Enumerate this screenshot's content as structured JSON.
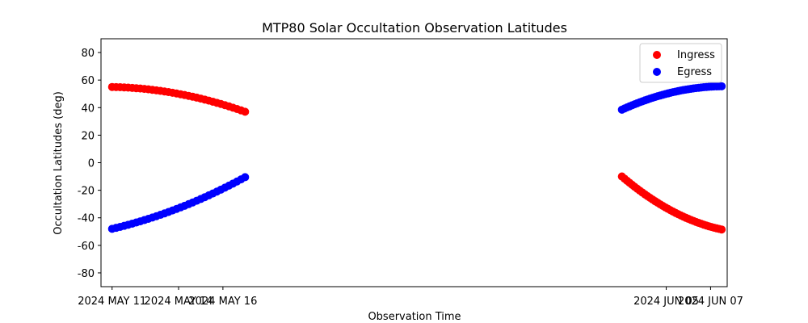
{
  "chart_data": {
    "type": "scatter",
    "title": "MTP80 Solar Occultation Observation Latitudes",
    "xlabel": "Observation Time",
    "ylabel": "Occultation Latitudes (deg)",
    "x_axis_type": "date",
    "xlim": [
      "2024-05-10T12:00",
      "2024-06-07T18:00"
    ],
    "ylim": [
      -90,
      90
    ],
    "x_ticks": [
      {
        "value": "2024-05-11",
        "label": "2024 MAY 11"
      },
      {
        "value": "2024-05-14",
        "label": "2024 MAY 14"
      },
      {
        "value": "2024-05-16",
        "label": "2024 MAY 16"
      },
      {
        "value": "2024-06-05",
        "label": "2024 JUN 05"
      },
      {
        "value": "2024-06-07",
        "label": "2024 JUN 07"
      }
    ],
    "y_ticks": [
      -80,
      -60,
      -40,
      -20,
      0,
      20,
      40,
      60,
      80
    ],
    "grid": false,
    "legend": "top-right",
    "series": [
      {
        "name": "Ingress",
        "color": "#ff0000",
        "segments": [
          {
            "start": "2024-05-11T00:00",
            "end": "2024-05-17T00:00",
            "y_start": 55,
            "y_mid": 50,
            "y_end": 37,
            "n": 34
          },
          {
            "start": "2024-06-03T00:00",
            "end": "2024-06-07T12:00",
            "y_start": -10,
            "y_mid": -35,
            "y_end": -48.5,
            "n": 40
          }
        ]
      },
      {
        "name": "Egress",
        "color": "#0000ff",
        "segments": [
          {
            "start": "2024-05-11T00:00",
            "end": "2024-05-17T00:00",
            "y_start": -48,
            "y_mid": -33,
            "y_end": -10.5,
            "n": 34
          },
          {
            "start": "2024-06-03T00:00",
            "end": "2024-06-07T12:00",
            "y_start": 38.5,
            "y_mid": 51,
            "y_end": 55.5,
            "n": 40
          }
        ]
      }
    ]
  }
}
